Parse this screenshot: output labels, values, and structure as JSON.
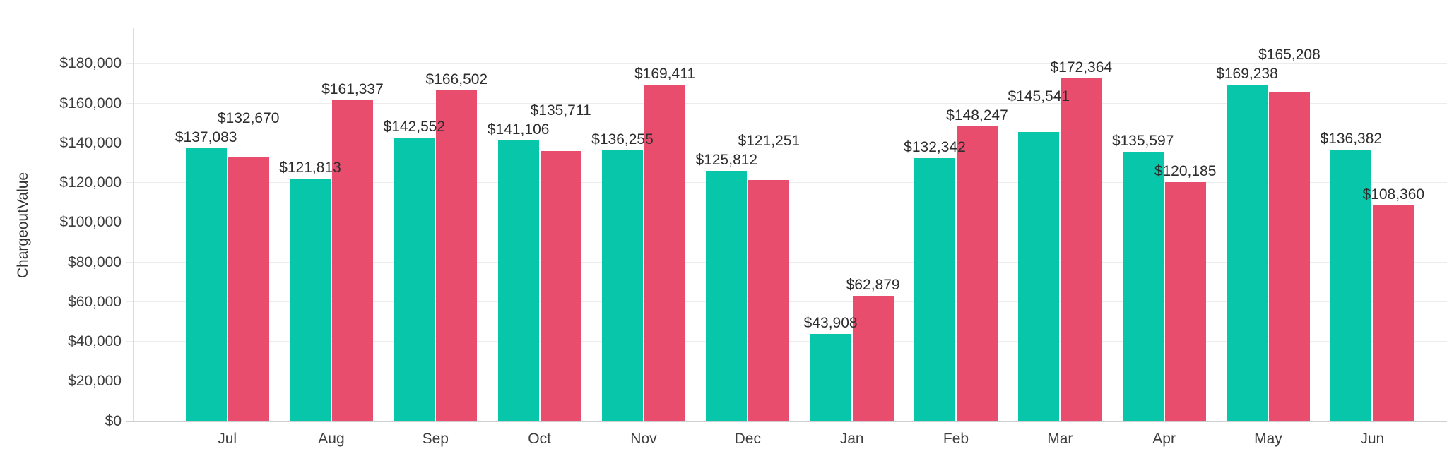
{
  "chart_data": {
    "type": "bar",
    "title": "",
    "xlabel": "",
    "ylabel": "ChargeoutValue",
    "categories": [
      "Jul",
      "Aug",
      "Sep",
      "Oct",
      "Nov",
      "Dec",
      "Jan",
      "Feb",
      "Mar",
      "Apr",
      "May",
      "Jun"
    ],
    "series": [
      {
        "name": "teal-series",
        "color": "#08C6AA",
        "values": [
          137083,
          121813,
          142552,
          141106,
          136255,
          125812,
          43908,
          132342,
          145541,
          135597,
          169238,
          136382
        ],
        "labels": [
          "$137,083",
          "$121,813",
          "$142,552",
          "$141,106",
          "$136,255",
          "$125,812",
          "$43,908",
          "$132,342",
          "$145,541",
          "$135,597",
          "$169,238",
          "$136,382"
        ]
      },
      {
        "name": "pink-series",
        "color": "#E84D6E",
        "values": [
          132670,
          161337,
          166502,
          135711,
          169411,
          121251,
          62879,
          148247,
          172364,
          120185,
          165208,
          108360
        ],
        "labels": [
          "$132,670",
          "$161,337",
          "$166,502",
          "$135,711",
          "$169,411",
          "$121,251",
          "$62,879",
          "$148,247",
          "$172,364",
          "$120,185",
          "$165,208",
          "$108,360"
        ]
      }
    ],
    "ylim": [
      0,
      180000
    ],
    "ytick_step": 20000,
    "ytick_labels": [
      "$0",
      "$20,000",
      "$40,000",
      "$60,000",
      "$80,000",
      "$100,000",
      "$120,000",
      "$140,000",
      "$160,000",
      "$180,000"
    ],
    "grid": true,
    "legend": "none"
  },
  "colors": {
    "background": "#ffffff",
    "gridline": "#ececec",
    "y_axis_line": "#dcdcdc",
    "x_axis_line": "#cfcfcf",
    "tick_text": "#3d3d3d",
    "value_label_text": "#2d2d2d"
  }
}
